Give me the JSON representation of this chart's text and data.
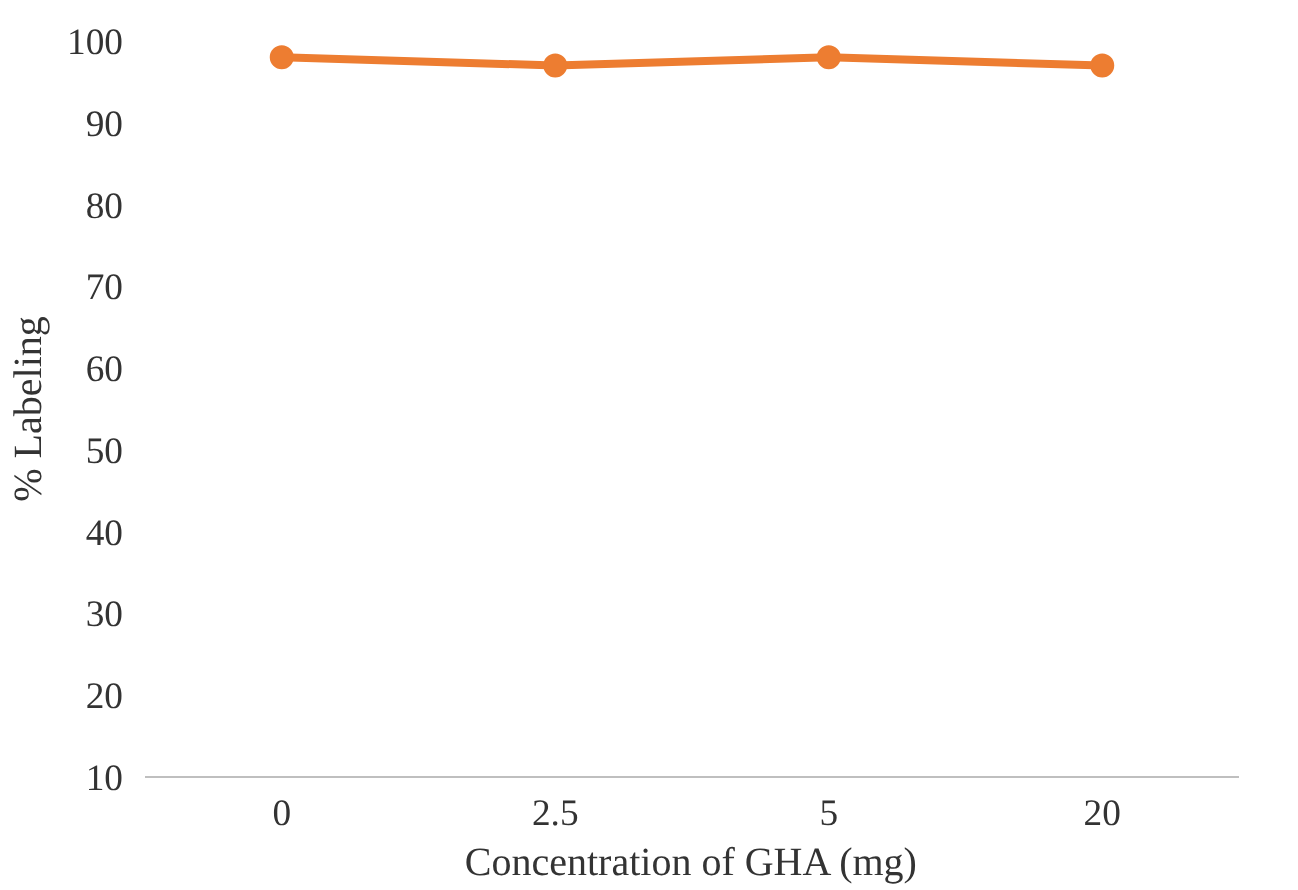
{
  "chart_data": {
    "type": "line",
    "xlabel": "Concentration of GHA (mg)",
    "ylabel": "% Labeling",
    "categories": [
      "0",
      "2.5",
      "5",
      "20"
    ],
    "series": [
      {
        "color": "#ed7d31",
        "values": [
          98,
          97,
          98,
          97
        ]
      }
    ],
    "ylim": [
      10,
      100
    ],
    "yticks": [
      10,
      20,
      30,
      40,
      50,
      60,
      70,
      80,
      90,
      100
    ],
    "grid": false,
    "marker": "circle",
    "line_style": "solid"
  }
}
